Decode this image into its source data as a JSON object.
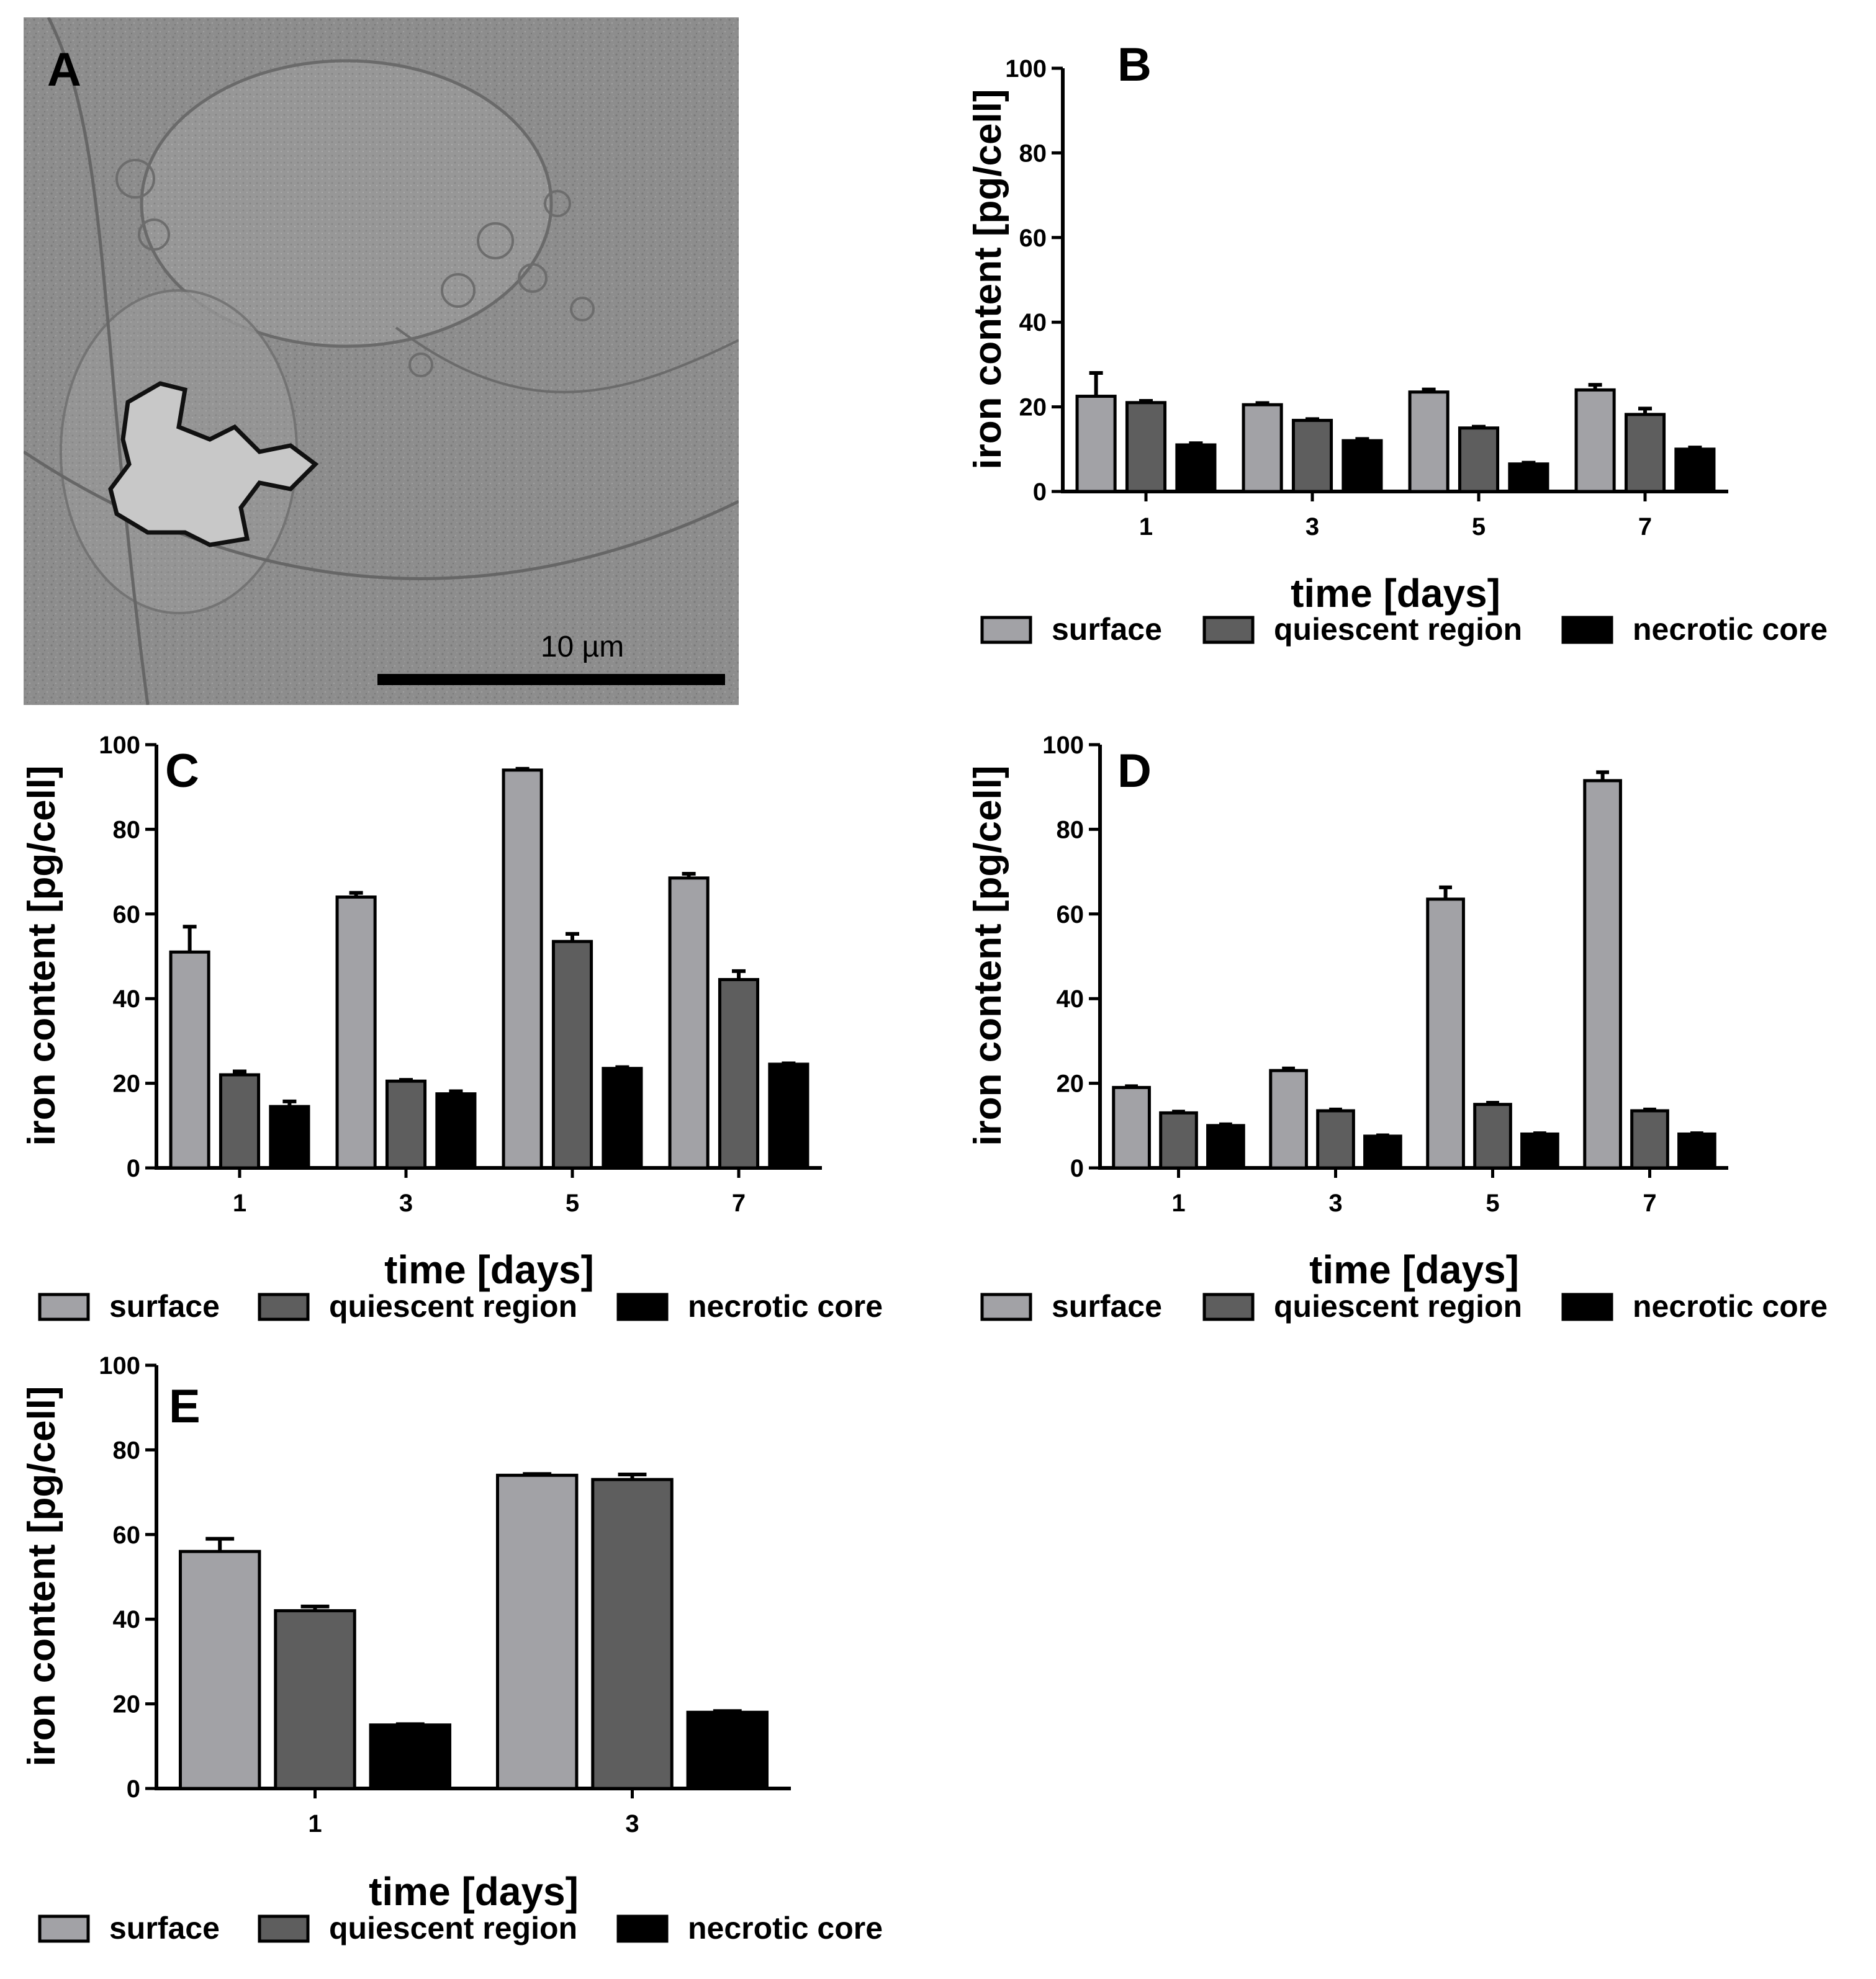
{
  "panel_a": {
    "letter": "A",
    "scale_bar_label": "10 µm"
  },
  "legend_labels": [
    "surface",
    "quiescent region",
    "necrotic core"
  ],
  "colors": {
    "surface": "#a2a2a6",
    "quiescent region": "#5e5e5e",
    "necrotic core": "#000000"
  },
  "chart_data": [
    {
      "letter": "B",
      "type": "bar",
      "xlabel": "time [days]",
      "ylabel": "iron content [pg/cell]",
      "ylim": [
        0,
        100
      ],
      "yticks": [
        0,
        20,
        40,
        60,
        80,
        100
      ],
      "categories": [
        "1",
        "3",
        "5",
        "7"
      ],
      "series": [
        {
          "name": "surface",
          "values": [
            22.5,
            20.5,
            23.5,
            24.0
          ],
          "errors": [
            5.5,
            0.4,
            0.6,
            1.2
          ]
        },
        {
          "name": "quiescent region",
          "values": [
            21.0,
            16.8,
            15.0,
            18.2
          ],
          "errors": [
            0.4,
            0.3,
            0.3,
            1.4
          ]
        },
        {
          "name": "necrotic core",
          "values": [
            11.0,
            12.0,
            6.5,
            10.0
          ],
          "errors": [
            0.4,
            0.4,
            0.3,
            0.4
          ]
        }
      ]
    },
    {
      "letter": "C",
      "type": "bar",
      "xlabel": "time [days]",
      "ylabel": "iron content [pg/cell]",
      "ylim": [
        0,
        100
      ],
      "yticks": [
        0,
        20,
        40,
        60,
        80,
        100
      ],
      "categories": [
        "1",
        "3",
        "5",
        "7"
      ],
      "series": [
        {
          "name": "surface",
          "values": [
            51.0,
            64.0,
            94.0,
            68.5
          ],
          "errors": [
            6.0,
            1.0,
            0.3,
            1.0
          ]
        },
        {
          "name": "quiescent region",
          "values": [
            22.0,
            20.5,
            53.5,
            44.5
          ],
          "errors": [
            0.8,
            0.3,
            1.8,
            2.0
          ]
        },
        {
          "name": "necrotic core",
          "values": [
            14.5,
            17.5,
            23.5,
            24.5
          ],
          "errors": [
            1.2,
            0.6,
            0.3,
            0.2
          ]
        }
      ]
    },
    {
      "letter": "D",
      "type": "bar",
      "xlabel": "time [days]",
      "ylabel": "iron content [pg/cell]",
      "ylim": [
        0,
        100
      ],
      "yticks": [
        0,
        20,
        40,
        60,
        80,
        100
      ],
      "categories": [
        "1",
        "3",
        "5",
        "7"
      ],
      "series": [
        {
          "name": "surface",
          "values": [
            19.0,
            23.0,
            63.5,
            91.5
          ],
          "errors": [
            0.3,
            0.5,
            2.8,
            2.0
          ]
        },
        {
          "name": "quiescent region",
          "values": [
            13.0,
            13.5,
            15.0,
            13.5
          ],
          "errors": [
            0.3,
            0.3,
            0.4,
            0.3
          ]
        },
        {
          "name": "necrotic core",
          "values": [
            10.0,
            7.5,
            8.0,
            8.0
          ],
          "errors": [
            0.3,
            0.2,
            0.2,
            0.2
          ]
        }
      ]
    },
    {
      "letter": "E",
      "type": "bar",
      "xlabel": "time [days]",
      "ylabel": "iron content [pg/cell]",
      "ylim": [
        0,
        100
      ],
      "yticks": [
        0,
        20,
        40,
        60,
        80,
        100
      ],
      "categories": [
        "1",
        "3"
      ],
      "series": [
        {
          "name": "surface",
          "values": [
            56.0,
            74.0
          ],
          "errors": [
            3.0,
            0.3
          ]
        },
        {
          "name": "quiescent region",
          "values": [
            42.0,
            73.0
          ],
          "errors": [
            1.0,
            1.2
          ]
        },
        {
          "name": "necrotic core",
          "values": [
            15.0,
            18.0
          ],
          "errors": [
            0.2,
            0.3
          ]
        }
      ]
    }
  ]
}
